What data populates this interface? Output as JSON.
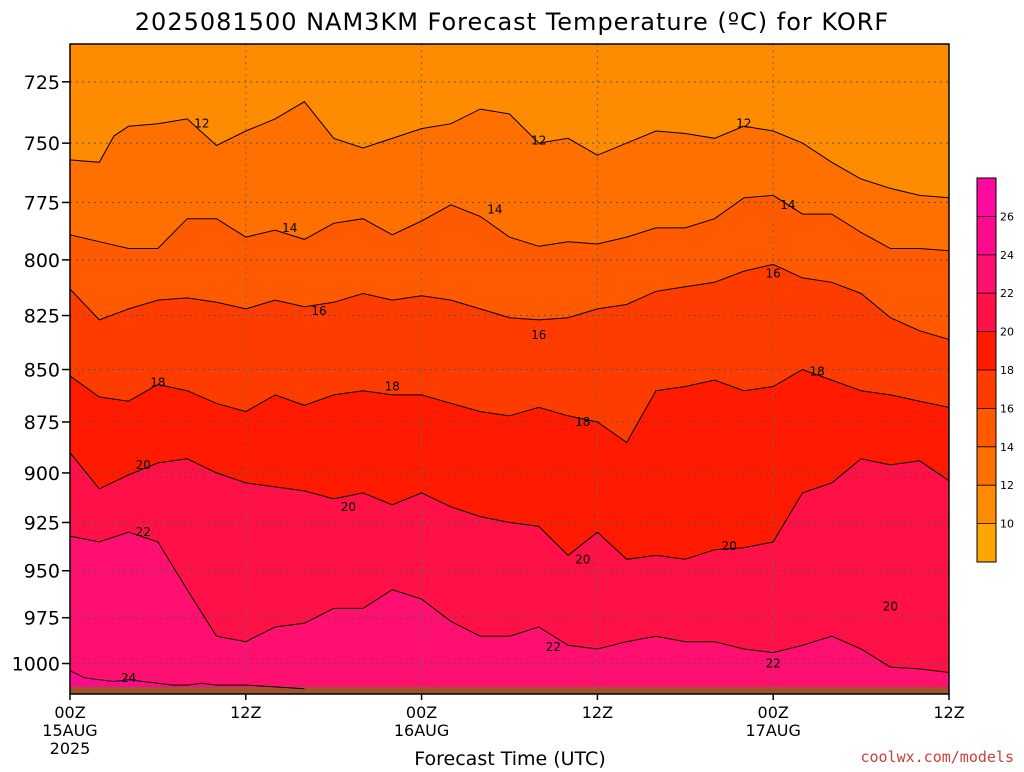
{
  "chart_data": {
    "type": "contour",
    "title": "2025081500 NAM3KM Forecast Temperature (ºC) for KORF",
    "xlabel": "Forecast Time (UTC)",
    "ylabel": "",
    "x_range_hours": [
      0,
      60
    ],
    "y_range_hpa": [
      1017,
      710
    ],
    "y_scale": "log-pressure",
    "y_ticks": [
      725,
      750,
      775,
      800,
      825,
      850,
      875,
      900,
      925,
      950,
      975,
      1000
    ],
    "x_ticks": [
      {
        "hour": 0,
        "label": "00Z",
        "sub1": "15AUG",
        "sub2": "2025"
      },
      {
        "hour": 12,
        "label": "12Z",
        "sub1": "",
        "sub2": ""
      },
      {
        "hour": 24,
        "label": "00Z",
        "sub1": "16AUG",
        "sub2": ""
      },
      {
        "hour": 36,
        "label": "12Z",
        "sub1": "",
        "sub2": ""
      },
      {
        "hour": 48,
        "label": "00Z",
        "sub1": "17AUG",
        "sub2": ""
      },
      {
        "hour": 60,
        "label": "12Z",
        "sub1": "",
        "sub2": ""
      }
    ],
    "grid": true,
    "colorbar": {
      "position": "right",
      "levels": [
        10,
        12,
        14,
        16,
        18,
        20,
        22,
        24,
        26
      ],
      "colors": [
        "#ffa500",
        "#ff8c00",
        "#ff7000",
        "#ff5a00",
        "#ff3c00",
        "#ff1a00",
        "#ff1046",
        "#ff1070",
        "#ff0a8c",
        "#ff0aa0"
      ]
    },
    "ground_color": "#a0522d",
    "isotherms": [
      {
        "value": 12,
        "hours": [
          0,
          2,
          3,
          4,
          6,
          8,
          10,
          12,
          14,
          16,
          18,
          20,
          24,
          26,
          28,
          30,
          32,
          34,
          36,
          38,
          40,
          42,
          44,
          46,
          48,
          50,
          52,
          54,
          56,
          58,
          60
        ],
        "pressure": [
          757,
          758,
          747,
          743,
          742,
          740,
          751,
          745,
          740,
          733,
          748,
          752,
          744,
          742,
          736,
          738,
          750,
          748,
          755,
          750,
          745,
          746,
          748,
          743,
          745,
          750,
          758,
          765,
          769,
          772,
          773
        ],
        "labels": [
          {
            "hour": 9,
            "pressure": 742
          },
          {
            "hour": 32,
            "pressure": 749
          },
          {
            "hour": 46,
            "pressure": 742
          }
        ]
      },
      {
        "value": 14,
        "hours": [
          0,
          2,
          4,
          6,
          8,
          10,
          12,
          14,
          16,
          18,
          20,
          22,
          24,
          26,
          28,
          30,
          32,
          34,
          36,
          38,
          40,
          42,
          44,
          46,
          48,
          50,
          52,
          54,
          56,
          58,
          60
        ],
        "pressure": [
          789,
          792,
          795,
          795,
          782,
          782,
          790,
          787,
          791,
          784,
          782,
          789,
          783,
          776,
          781,
          790,
          794,
          792,
          793,
          790,
          786,
          786,
          782,
          773,
          772,
          780,
          780,
          788,
          795,
          795,
          796
        ],
        "labels": [
          {
            "hour": 15,
            "pressure": 786
          },
          {
            "hour": 29,
            "pressure": 778
          },
          {
            "hour": 49,
            "pressure": 776
          }
        ]
      },
      {
        "value": 16,
        "hours": [
          0,
          2,
          4,
          6,
          8,
          10,
          12,
          14,
          16,
          18,
          20,
          22,
          24,
          26,
          28,
          30,
          32,
          34,
          36,
          38,
          40,
          42,
          44,
          46,
          48,
          50,
          52,
          54,
          56,
          58,
          60
        ],
        "pressure": [
          813,
          827,
          822,
          818,
          817,
          819,
          822,
          818,
          821,
          819,
          815,
          818,
          816,
          818,
          822,
          826,
          827,
          826,
          822,
          820,
          814,
          812,
          810,
          805,
          802,
          808,
          810,
          815,
          826,
          832,
          836
        ],
        "labels": [
          {
            "hour": 17,
            "pressure": 823
          },
          {
            "hour": 32,
            "pressure": 834
          },
          {
            "hour": 48,
            "pressure": 806
          }
        ]
      },
      {
        "value": 18,
        "hours": [
          0,
          2,
          4,
          6,
          8,
          10,
          12,
          14,
          16,
          18,
          20,
          22,
          24,
          26,
          28,
          30,
          32,
          34,
          36,
          38,
          40,
          42,
          44,
          46,
          48,
          50,
          52,
          54,
          56,
          58,
          60
        ],
        "pressure": [
          853,
          863,
          865,
          857,
          860,
          866,
          870,
          862,
          867,
          862,
          860,
          862,
          862,
          866,
          870,
          872,
          868,
          872,
          875,
          885,
          860,
          858,
          855,
          860,
          858,
          850,
          855,
          860,
          862,
          865,
          868
        ],
        "labels": [
          {
            "hour": 6,
            "pressure": 856
          },
          {
            "hour": 22,
            "pressure": 858
          },
          {
            "hour": 35,
            "pressure": 875
          },
          {
            "hour": 51,
            "pressure": 851
          }
        ]
      },
      {
        "value": 20,
        "hours": [
          0,
          2,
          4,
          6,
          8,
          10,
          12,
          14,
          16,
          18,
          20,
          22,
          24,
          26,
          28,
          30,
          32,
          34,
          36,
          38,
          40,
          42,
          44,
          46,
          48,
          50,
          52,
          54,
          56,
          58,
          60
        ],
        "pressure": [
          890,
          908,
          901,
          895,
          893,
          900,
          905,
          907,
          909,
          913,
          910,
          916,
          910,
          917,
          922,
          925,
          927,
          942,
          930,
          944,
          942,
          944,
          939,
          938,
          935,
          910,
          905,
          893,
          896,
          894,
          904
        ],
        "labels": [
          {
            "hour": 5,
            "pressure": 896
          },
          {
            "hour": 19,
            "pressure": 917
          },
          {
            "hour": 35,
            "pressure": 944
          },
          {
            "hour": 45,
            "pressure": 937
          },
          {
            "hour": 56,
            "pressure": 969
          }
        ]
      },
      {
        "value": 22,
        "hours": [
          0,
          2,
          4,
          6,
          8,
          10,
          12,
          14,
          16,
          18,
          20,
          22,
          24,
          26,
          28,
          30,
          32,
          34,
          36,
          38,
          40,
          42,
          44,
          46,
          48,
          50,
          52,
          54,
          56,
          58,
          60
        ],
        "pressure": [
          932,
          935,
          930,
          935,
          960,
          985,
          988,
          980,
          978,
          970,
          970,
          960,
          965,
          977,
          985,
          985,
          980,
          990,
          992,
          988,
          985,
          988,
          988,
          992,
          994,
          990,
          985,
          992,
          1002,
          1003,
          1005
        ],
        "labels": [
          {
            "hour": 5,
            "pressure": 930
          },
          {
            "hour": 33,
            "pressure": 991
          },
          {
            "hour": 48,
            "pressure": 1000
          }
        ]
      },
      {
        "value": 24,
        "hours": [
          0,
          1,
          2,
          3,
          4,
          5,
          6,
          7,
          8,
          9,
          10,
          12,
          14,
          16
        ],
        "pressure": [
          1004,
          1008,
          1009,
          1010,
          1009,
          1010,
          1011,
          1012,
          1012,
          1011,
          1012,
          1012,
          1013,
          1014
        ],
        "labels": [
          {
            "hour": 4,
            "pressure": 1008
          }
        ]
      }
    ]
  },
  "footer": {
    "credit": "coolwx.com/models"
  }
}
